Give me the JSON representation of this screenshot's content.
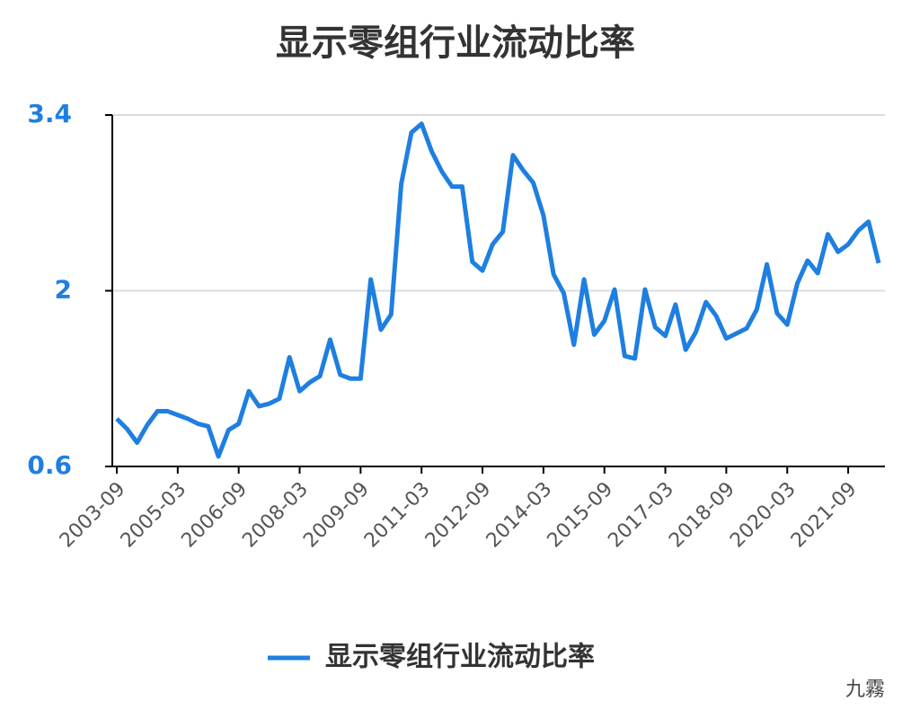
{
  "chart_data": {
    "type": "line",
    "title": "显示零组行业流动比率",
    "categories": [
      "2003-09",
      null,
      null,
      null,
      null,
      null,
      "2005-03",
      null,
      null,
      null,
      null,
      null,
      "2006-09",
      null,
      null,
      null,
      null,
      null,
      "2008-03",
      null,
      null,
      null,
      null,
      null,
      "2009-09",
      null,
      null,
      null,
      null,
      null,
      "2011-03",
      null,
      null,
      null,
      null,
      null,
      "2012-09",
      null,
      null,
      null,
      null,
      null,
      "2014-03",
      null,
      null,
      null,
      null,
      null,
      "2015-09",
      null,
      null,
      null,
      null,
      null,
      "2017-03",
      null,
      null,
      null,
      null,
      null,
      "2018-09",
      null,
      null,
      null,
      null,
      null,
      "2020-03",
      null,
      null,
      null,
      null,
      null,
      "2021-09",
      null,
      null,
      null
    ],
    "series": [
      {
        "name": "显示零组行业流动比率",
        "color": "#1e7fe0",
        "values": [
          0.98,
          0.9,
          0.79,
          0.93,
          1.04,
          1.04,
          1.01,
          0.98,
          0.94,
          0.92,
          0.68,
          0.89,
          0.94,
          1.2,
          1.08,
          1.1,
          1.14,
          1.47,
          1.2,
          1.27,
          1.32,
          1.61,
          1.33,
          1.3,
          1.3,
          2.09,
          1.69,
          1.81,
          2.85,
          3.26,
          3.33,
          3.11,
          2.95,
          2.83,
          2.83,
          2.23,
          2.16,
          2.37,
          2.47,
          3.08,
          2.96,
          2.86,
          2.6,
          2.13,
          1.98,
          1.57,
          2.09,
          1.65,
          1.76,
          2.01,
          1.48,
          1.46,
          2.01,
          1.71,
          1.64,
          1.89,
          1.53,
          1.67,
          1.91,
          1.8,
          1.62,
          1.66,
          1.7,
          1.85,
          2.21,
          1.82,
          1.73,
          2.06,
          2.24,
          2.14,
          2.45,
          2.31,
          2.37,
          2.48,
          2.55,
          2.22
        ]
      }
    ],
    "ylim": [
      0.6,
      3.4
    ],
    "yticks": [
      0.6,
      2,
      3.4
    ],
    "grid": true
  },
  "watermark": "九霧"
}
